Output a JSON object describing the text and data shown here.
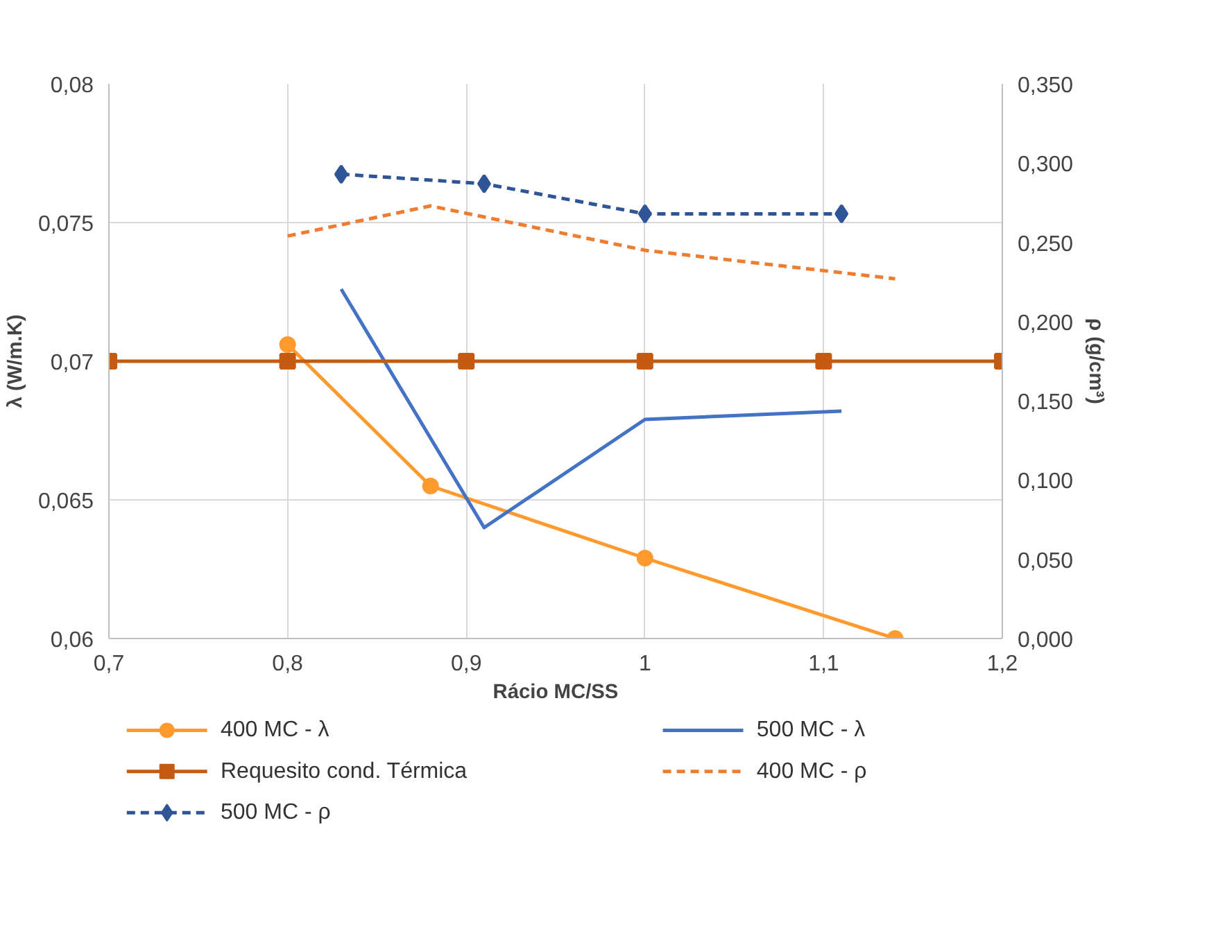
{
  "chart_data": {
    "type": "line",
    "xlabel": "Rácio MC/SS",
    "ylabel": "λ (W/m.K)",
    "y2label": "ρ (g/cm³)",
    "xlim": [
      0.7,
      1.2
    ],
    "xticks": [
      {
        "value": 0.7,
        "label": "0,7"
      },
      {
        "value": 0.8,
        "label": "0,8"
      },
      {
        "value": 0.9,
        "label": "0,9"
      },
      {
        "value": 1,
        "label": "1"
      },
      {
        "value": 1.1,
        "label": "1,1"
      },
      {
        "value": 1.2,
        "label": "1,2"
      }
    ],
    "ylim": [
      0.06,
      0.08
    ],
    "yticks": [
      {
        "value": 0.06,
        "label": "0,06"
      },
      {
        "value": 0.065,
        "label": "0,065"
      },
      {
        "value": 0.07,
        "label": "0,07"
      },
      {
        "value": 0.075,
        "label": "0,075"
      },
      {
        "value": 0.08,
        "label": "0,08"
      }
    ],
    "y2lim": [
      0,
      0.35
    ],
    "y2ticks": [
      {
        "value": 0,
        "label": "0,000"
      },
      {
        "value": 0.05,
        "label": "0,050"
      },
      {
        "value": 0.1,
        "label": "0,100"
      },
      {
        "value": 0.15,
        "label": "0,150"
      },
      {
        "value": 0.2,
        "label": "0,200"
      },
      {
        "value": 0.25,
        "label": "0,250"
      },
      {
        "value": 0.3,
        "label": "0,300"
      },
      {
        "value": 0.35,
        "label": "0,350"
      }
    ],
    "grid": true,
    "legend": "bottom",
    "series": [
      {
        "name": "400 MC - λ",
        "color": "#ff9a2e",
        "marker": "circle",
        "line_style": "solid",
        "x": [
          0.8,
          0.88,
          1.0,
          1.14
        ],
        "values": [
          0.0706,
          0.0655,
          0.0629,
          0.06
        ]
      },
      {
        "name": "500 MC - λ",
        "color": "#4472c4",
        "marker": "none",
        "line_style": "solid",
        "x": [
          0.83,
          0.91,
          1.0,
          1.11
        ],
        "values": [
          0.0726,
          0.064,
          0.0679,
          0.0682
        ]
      },
      {
        "name": "Requesito cond. Térmica",
        "color": "#c55a11",
        "marker": "square",
        "line_style": "solid",
        "x": [
          0.7,
          0.8,
          0.9,
          1.0,
          1.1,
          1.2
        ],
        "values": [
          0.07,
          0.07,
          0.07,
          0.07,
          0.07,
          0.07
        ]
      },
      {
        "name": "400 MC - ρ",
        "color": "#ed7d31",
        "marker": "none",
        "line_style": "dashed",
        "axis": "y2",
        "x": [
          0.8,
          0.88,
          1.0,
          1.14
        ],
        "values": [
          0.254,
          0.273,
          0.245,
          0.227
        ]
      },
      {
        "name": "500 MC - ρ",
        "color": "#2f5597",
        "marker": "diamond",
        "line_style": "dashed",
        "axis": "y2",
        "x": [
          0.83,
          0.91,
          1.0,
          1.11
        ],
        "values": [
          0.293,
          0.287,
          0.268,
          0.268
        ]
      }
    ]
  }
}
